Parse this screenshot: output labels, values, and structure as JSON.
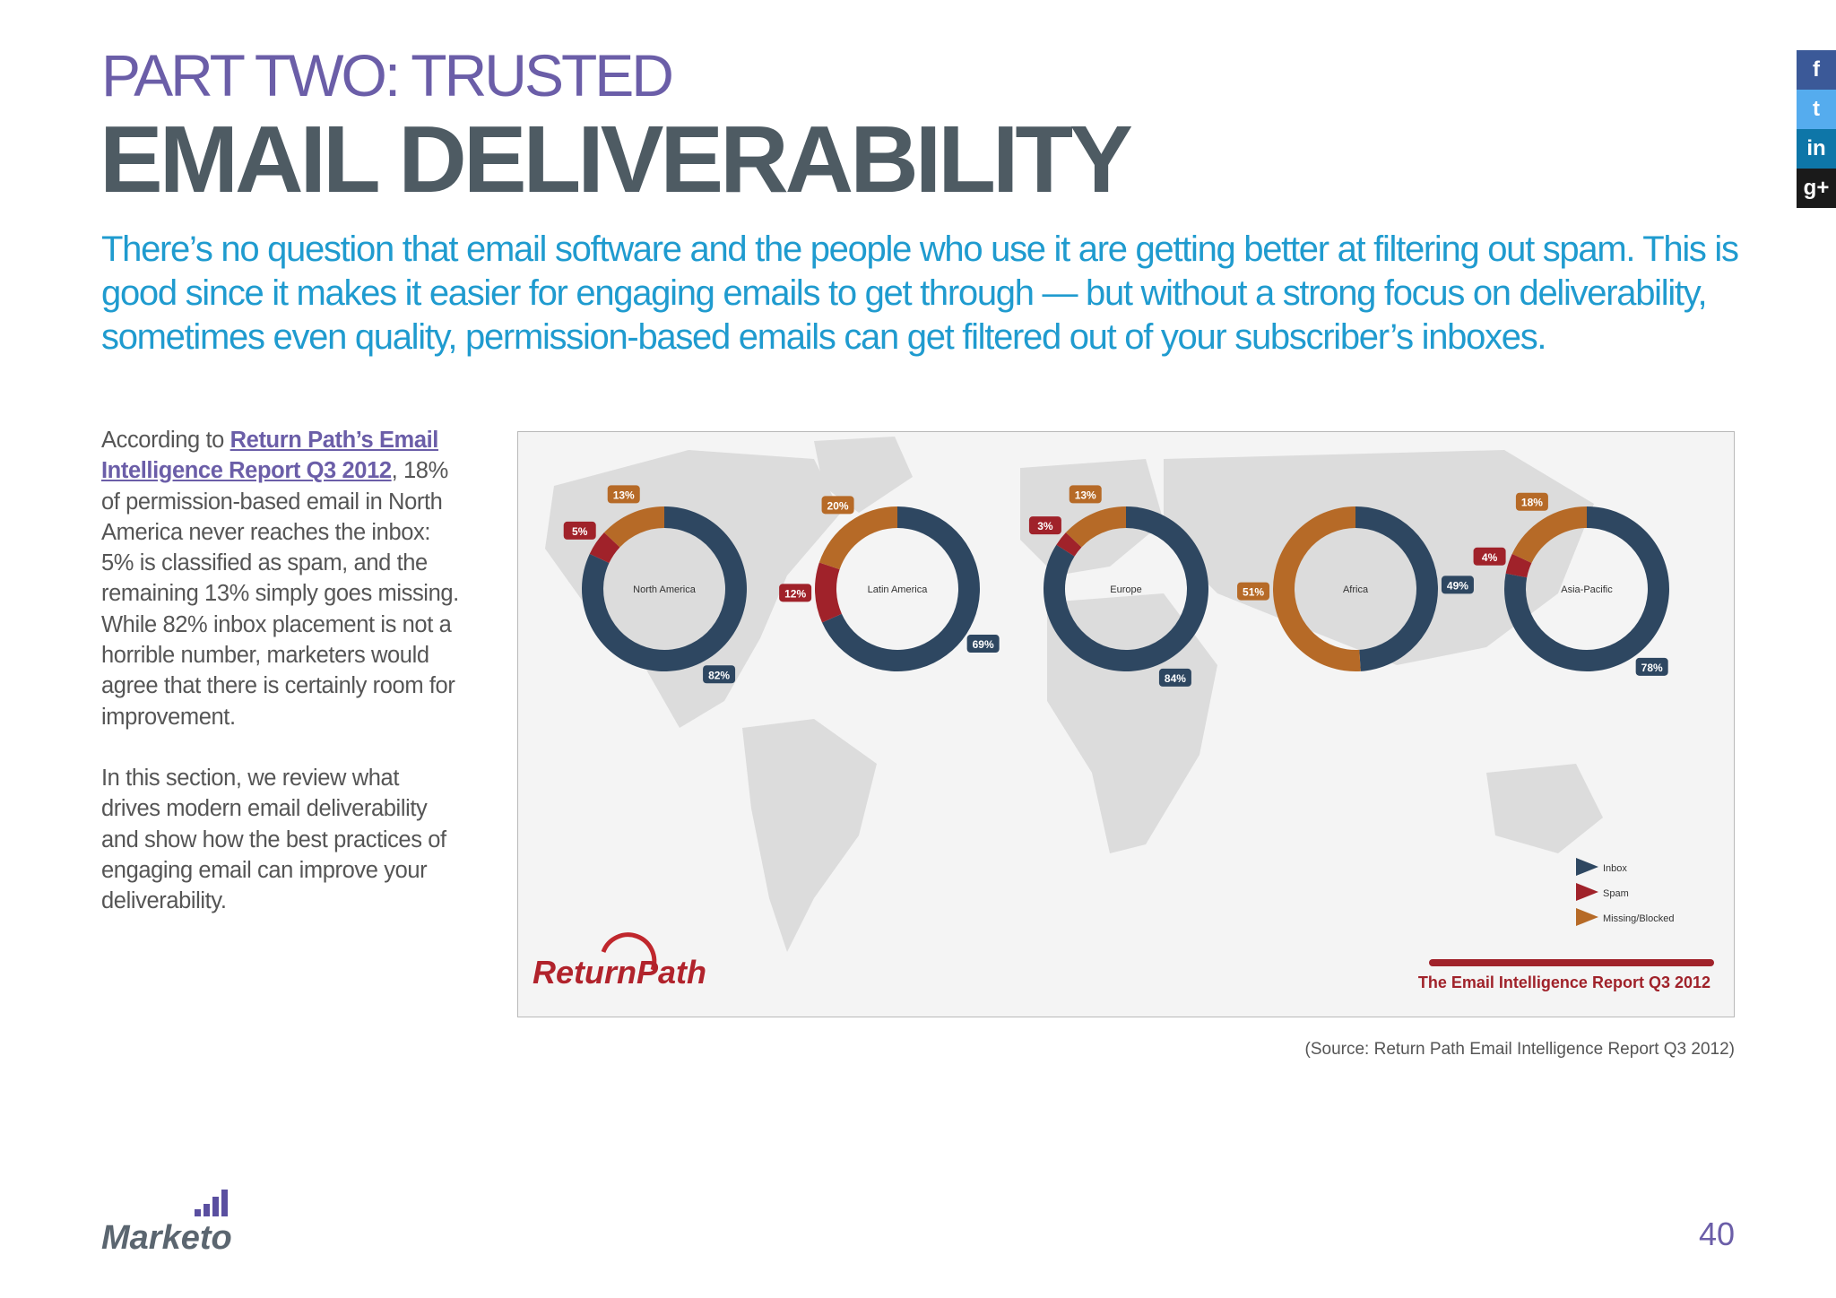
{
  "kicker": "PART TWO: TRUSTED",
  "title": "EMAIL DELIVERABILITY",
  "lead": "There’s no question that email software and the people who use it are getting better at filtering out spam. This is good since it makes it easier for engaging emails to get through — but without a strong focus on deliverability, sometimes even quality, permission-based emails can get filtered out of your subscriber’s inboxes.",
  "body": {
    "p1_before": "According to ",
    "p1_link": "Return Path’s Email Intelligence Report Q3 2012",
    "p1_after": ", 18% of permission-based email in North America never reaches the inbox: 5% is classified as spam, and the remaining 13% simply goes missing. While 82% inbox placement is not a horrible number, marketers would agree that there is certainly room for improvement.",
    "p2": "In this section, we review what drives modern email deliverability and show how the best practices of engaging email can improve your deliverability."
  },
  "source": "(Source: Return Path Email Intelligence Report Q3 2012)",
  "page_number": "40",
  "logo_text": "Marketo",
  "social": [
    {
      "name": "facebook-icon",
      "glyph": "f"
    },
    {
      "name": "twitter-icon",
      "glyph": "t"
    },
    {
      "name": "linkedin-icon",
      "glyph": "in"
    },
    {
      "name": "google-plus-icon",
      "glyph": "g+"
    }
  ],
  "figure": {
    "brand": "ReturnPath",
    "banner": "The Email Intelligence Report Q3 2012",
    "legend": [
      {
        "label": "Inbox",
        "color": "#2e4761"
      },
      {
        "label": "Spam",
        "color": "#a0222a"
      },
      {
        "label": "Missing/Blocked",
        "color": "#b66a27"
      }
    ]
  },
  "chart_data": {
    "type": "pie",
    "series": [
      {
        "name": "North America",
        "values": [
          82,
          5,
          13
        ],
        "labels": [
          "82%",
          "5%",
          "13%"
        ]
      },
      {
        "name": "Latin America",
        "values": [
          69,
          12,
          20
        ],
        "labels": [
          "69%",
          "12%",
          "20%"
        ]
      },
      {
        "name": "Europe",
        "values": [
          84,
          3,
          13
        ],
        "labels": [
          "84%",
          "3%",
          "13%"
        ]
      },
      {
        "name": "Africa",
        "values": [
          49,
          0,
          51
        ],
        "labels": [
          "49%",
          "",
          "51%"
        ]
      },
      {
        "name": "Asia-Pacific",
        "values": [
          78,
          4,
          18
        ],
        "labels": [
          "78%",
          "4%",
          "18%"
        ]
      }
    ],
    "categories": [
      "Inbox",
      "Spam",
      "Missing/Blocked"
    ],
    "colors": [
      "#2e4761",
      "#a0222a",
      "#b66a27"
    ],
    "legend": "bottom-right"
  }
}
